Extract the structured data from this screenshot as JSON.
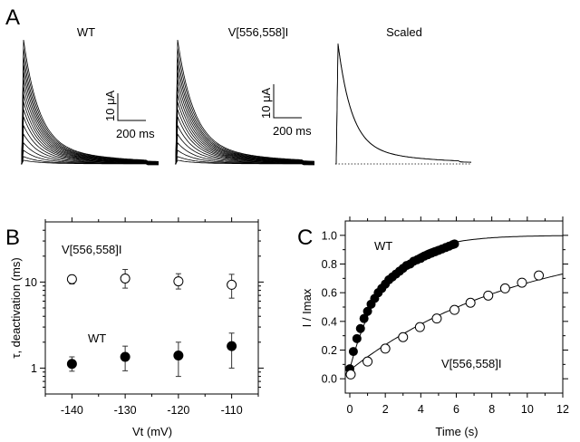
{
  "figure": {
    "panel_a": {
      "label": "A",
      "titles": [
        "WT",
        "V[556,558]I",
        "Scaled"
      ],
      "scale_bar_current": "10 μA",
      "scale_bar_time": "200 ms",
      "wt_sweep_amplitudes": [
        1.0,
        0.93,
        0.86,
        0.8,
        0.74,
        0.68,
        0.62,
        0.56,
        0.5,
        0.44,
        0.38,
        0.31,
        0.24,
        0.17,
        0.11,
        0.06,
        0.03
      ],
      "mutant_sweep_amplitudes": [
        1.0,
        0.93,
        0.86,
        0.8,
        0.74,
        0.68,
        0.62,
        0.56,
        0.5,
        0.44,
        0.38,
        0.31,
        0.24,
        0.17,
        0.11,
        0.06,
        0.03
      ]
    }
  },
  "chart_data": [
    {
      "panel": "B",
      "type": "scatter",
      "label": "B",
      "xlabel": "Vt (mV)",
      "ylabel": "τ, deactivation (ms)",
      "yscale": "log",
      "xlim": [
        -145,
        -105
      ],
      "ylim": [
        0.5,
        50
      ],
      "xticks": [
        "-140",
        "-130",
        "-120",
        "-110"
      ],
      "xtick_values": [
        -140,
        -130,
        -120,
        -110
      ],
      "yticks": [
        "10",
        "1"
      ],
      "ytick_values": [
        10,
        1
      ],
      "series": [
        {
          "name": "V[556,558]I",
          "marker": "open-circle",
          "x": [
            -140,
            -130,
            -120,
            -110
          ],
          "y": [
            10.8,
            11.0,
            10.2,
            9.3
          ],
          "err_low": [
            9.5,
            8.5,
            8.3,
            6.5
          ],
          "err_high": [
            12.0,
            14.0,
            12.5,
            12.3
          ]
        },
        {
          "name": "WT",
          "marker": "filled-circle",
          "x": [
            -140,
            -130,
            -120,
            -110
          ],
          "y": [
            1.12,
            1.35,
            1.4,
            1.8
          ],
          "err_low": [
            0.92,
            0.93,
            0.8,
            1.0
          ],
          "err_high": [
            1.35,
            1.8,
            2.0,
            2.55
          ]
        }
      ]
    },
    {
      "panel": "C",
      "type": "scatter",
      "label": "C",
      "xlabel": "Time (s)",
      "ylabel": "I / Imax",
      "xlim": [
        0,
        12
      ],
      "ylim": [
        -0.1,
        1.1
      ],
      "xticks": [
        "0",
        "2",
        "4",
        "6",
        "8",
        "10",
        "12"
      ],
      "xtick_values": [
        0,
        2,
        4,
        6,
        8,
        10,
        12
      ],
      "yticks": [
        "0.0",
        "0.2",
        "0.4",
        "0.6",
        "0.8",
        "1.0"
      ],
      "ytick_values": [
        0,
        0.2,
        0.4,
        0.6,
        0.8,
        1.0
      ],
      "series": [
        {
          "name": "WT",
          "marker": "filled-circle",
          "x": [
            0.0,
            0.2,
            0.4,
            0.6,
            0.8,
            1.0,
            1.2,
            1.4,
            1.6,
            1.8,
            2.0,
            2.2,
            2.4,
            2.6,
            2.8,
            3.0,
            3.2,
            3.4,
            3.6,
            3.8,
            4.0,
            4.2,
            4.4,
            4.6,
            4.8,
            5.0,
            5.2,
            5.4,
            5.6,
            5.8,
            5.9
          ],
          "y": [
            0.07,
            0.19,
            0.28,
            0.35,
            0.42,
            0.47,
            0.52,
            0.56,
            0.6,
            0.63,
            0.66,
            0.69,
            0.71,
            0.73,
            0.75,
            0.77,
            0.79,
            0.8,
            0.82,
            0.83,
            0.84,
            0.855,
            0.865,
            0.875,
            0.885,
            0.895,
            0.905,
            0.915,
            0.925,
            0.935,
            0.94
          ],
          "fit": {
            "model": "1 - A*exp(-t/tau)",
            "A": 0.93,
            "tau": 2.0,
            "range": [
              0,
              12
            ]
          }
        },
        {
          "name": "V[556,558]I",
          "marker": "open-circle",
          "x": [
            0.05,
            1.0,
            2.0,
            3.0,
            3.95,
            4.9,
            5.9,
            6.8,
            7.8,
            8.75,
            9.7,
            10.65
          ],
          "y": [
            0.03,
            0.12,
            0.21,
            0.29,
            0.36,
            0.42,
            0.48,
            0.53,
            0.58,
            0.63,
            0.67,
            0.72
          ],
          "fit": {
            "model": "1 - A*exp(-t/tau)",
            "A": 0.94,
            "tau": 9.6,
            "range": [
              0,
              12
            ]
          }
        }
      ]
    }
  ]
}
